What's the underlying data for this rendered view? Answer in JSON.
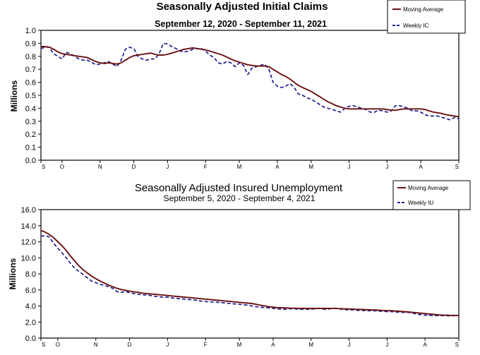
{
  "chart_data": [
    {
      "type": "line",
      "title": "Seasonally Adjusted Initial Claims",
      "subtitle": "September 12, 2020 - September 11, 2021",
      "ylabel": "Millions",
      "xlabel": "",
      "ylim": [
        0,
        1.0
      ],
      "y_ticks": [
        "0.0",
        "0.1",
        "0.2",
        "0.3",
        "0.4",
        "0.5",
        "0.6",
        "0.7",
        "0.8",
        "0.9",
        "1.0"
      ],
      "x_tick_labels": [
        "S",
        "O",
        "N",
        "D",
        "J",
        "F",
        "M",
        "A",
        "M",
        "J",
        "J",
        "A",
        "S"
      ],
      "x_tick_weeks": [
        0,
        5,
        14,
        22,
        30,
        39,
        47,
        56,
        64,
        73,
        82,
        90,
        99
      ],
      "grid": false,
      "legend_position": "top-right",
      "colors": {
        "moving_average": "#6b0f0f",
        "weekly": "#1f1f8f"
      },
      "series": [
        {
          "name": "Moving Average",
          "style": "solid",
          "values": [
            0.875,
            0.875,
            0.87,
            0.855,
            0.835,
            0.82,
            0.815,
            0.81,
            0.805,
            0.8,
            0.795,
            0.79,
            0.775,
            0.76,
            0.75,
            0.745,
            0.75,
            0.745,
            0.74,
            0.75,
            0.77,
            0.79,
            0.805,
            0.81,
            0.815,
            0.82,
            0.825,
            0.815,
            0.81,
            0.81,
            0.815,
            0.825,
            0.835,
            0.845,
            0.855,
            0.86,
            0.865,
            0.86,
            0.855,
            0.85,
            0.84,
            0.83,
            0.82,
            0.81,
            0.795,
            0.78,
            0.765,
            0.755,
            0.745,
            0.735,
            0.73,
            0.725,
            0.725,
            0.725,
            0.72,
            0.7,
            0.68,
            0.66,
            0.645,
            0.625,
            0.6,
            0.575,
            0.56,
            0.545,
            0.53,
            0.51,
            0.49,
            0.47,
            0.45,
            0.435,
            0.42,
            0.41,
            0.4,
            0.395,
            0.395,
            0.395,
            0.395,
            0.395,
            0.395,
            0.395,
            0.395,
            0.395,
            0.39,
            0.385,
            0.385,
            0.39,
            0.395,
            0.395,
            0.395,
            0.395,
            0.395,
            0.39,
            0.38,
            0.37,
            0.365,
            0.36,
            0.35,
            0.345,
            0.34,
            0.335
          ]
        },
        {
          "name": "Weekly IC",
          "style": "dashed",
          "values": [
            0.86,
            0.87,
            0.87,
            0.82,
            0.8,
            0.78,
            0.83,
            0.82,
            0.8,
            0.78,
            0.77,
            0.77,
            0.755,
            0.735,
            0.74,
            0.75,
            0.76,
            0.74,
            0.72,
            0.77,
            0.855,
            0.87,
            0.86,
            0.8,
            0.78,
            0.77,
            0.78,
            0.78,
            0.82,
            0.9,
            0.895,
            0.875,
            0.86,
            0.84,
            0.835,
            0.84,
            0.855,
            0.86,
            0.86,
            0.84,
            0.81,
            0.79,
            0.75,
            0.74,
            0.76,
            0.75,
            0.72,
            0.75,
            0.73,
            0.66,
            0.71,
            0.72,
            0.73,
            0.74,
            0.7,
            0.6,
            0.57,
            0.56,
            0.57,
            0.59,
            0.56,
            0.51,
            0.5,
            0.48,
            0.47,
            0.45,
            0.43,
            0.41,
            0.4,
            0.39,
            0.38,
            0.37,
            0.4,
            0.415,
            0.42,
            0.41,
            0.4,
            0.39,
            0.37,
            0.37,
            0.385,
            0.38,
            0.37,
            0.38,
            0.42,
            0.42,
            0.41,
            0.4,
            0.38,
            0.38,
            0.37,
            0.35,
            0.34,
            0.34,
            0.34,
            0.33,
            0.32,
            0.31,
            0.33,
            0.32
          ]
        }
      ]
    },
    {
      "type": "line",
      "title": "Seasonally Adjusted Insured Unemployment",
      "subtitle": "September 5, 2020 - September 4, 2021",
      "ylabel": "Millions",
      "xlabel": "",
      "ylim": [
        0,
        16.0
      ],
      "y_ticks": [
        "0.0",
        "2.0",
        "4.0",
        "6.0",
        "8.0",
        "10.0",
        "12.0",
        "14.0",
        "16.0"
      ],
      "x_tick_labels": [
        "S",
        "O",
        "N",
        "D",
        "J",
        "F",
        "M",
        "A",
        "M",
        "J",
        "J",
        "A",
        "S"
      ],
      "x_tick_weeks": [
        0,
        4,
        13,
        21,
        30,
        39,
        47,
        55,
        64,
        73,
        82,
        91,
        99
      ],
      "grid": false,
      "legend_position": "top-right",
      "colors": {
        "moving_average": "#6b0f0f",
        "weekly": "#1f1f8f"
      },
      "series": [
        {
          "name": "Moving Average",
          "style": "solid",
          "values": [
            13.4,
            13.2,
            12.9,
            12.5,
            12.0,
            11.5,
            10.9,
            10.2,
            9.6,
            9.0,
            8.5,
            8.1,
            7.7,
            7.4,
            7.1,
            6.85,
            6.6,
            6.4,
            6.2,
            6.05,
            5.95,
            5.85,
            5.75,
            5.7,
            5.6,
            5.55,
            5.5,
            5.45,
            5.4,
            5.35,
            5.3,
            5.25,
            5.2,
            5.15,
            5.1,
            5.05,
            5.0,
            4.95,
            4.9,
            4.85,
            4.8,
            4.75,
            4.7,
            4.65,
            4.6,
            4.55,
            4.5,
            4.45,
            4.4,
            4.35,
            4.3,
            4.2,
            4.1,
            4.0,
            3.9,
            3.85,
            3.8,
            3.78,
            3.75,
            3.73,
            3.72,
            3.7,
            3.7,
            3.7,
            3.7,
            3.7,
            3.7,
            3.7,
            3.7,
            3.7,
            3.68,
            3.66,
            3.64,
            3.62,
            3.6,
            3.58,
            3.56,
            3.54,
            3.52,
            3.5,
            3.47,
            3.44,
            3.42,
            3.4,
            3.37,
            3.33,
            3.3,
            3.25,
            3.2,
            3.15,
            3.1,
            3.05,
            3.0,
            2.95,
            2.9,
            2.87,
            2.85,
            2.83,
            2.82,
            2.8
          ]
        },
        {
          "name": "Weekly IU",
          "style": "dashed",
          "values": [
            12.7,
            12.75,
            12.6,
            11.8,
            11.2,
            10.6,
            10.0,
            9.3,
            8.7,
            8.3,
            7.9,
            7.5,
            7.1,
            6.9,
            6.7,
            6.55,
            6.4,
            6.2,
            5.8,
            5.7,
            5.8,
            5.65,
            5.55,
            5.45,
            5.4,
            5.35,
            5.3,
            5.2,
            5.15,
            5.1,
            5.1,
            5.0,
            4.95,
            4.9,
            4.85,
            4.8,
            4.75,
            4.7,
            4.6,
            4.55,
            4.5,
            4.5,
            4.45,
            4.4,
            4.35,
            4.3,
            4.25,
            4.2,
            4.15,
            4.1,
            4.0,
            3.9,
            3.85,
            3.8,
            3.75,
            3.7,
            3.65,
            3.6,
            3.6,
            3.65,
            3.65,
            3.6,
            3.6,
            3.6,
            3.6,
            3.65,
            3.7,
            3.6,
            3.6,
            3.7,
            3.7,
            3.6,
            3.55,
            3.5,
            3.5,
            3.45,
            3.45,
            3.4,
            3.4,
            3.4,
            3.35,
            3.35,
            3.3,
            3.3,
            3.25,
            3.2,
            3.2,
            3.2,
            3.1,
            3.0,
            2.9,
            2.85,
            2.85,
            2.8,
            2.8,
            2.8,
            2.8,
            2.75,
            2.8,
            2.8
          ]
        }
      ]
    }
  ]
}
